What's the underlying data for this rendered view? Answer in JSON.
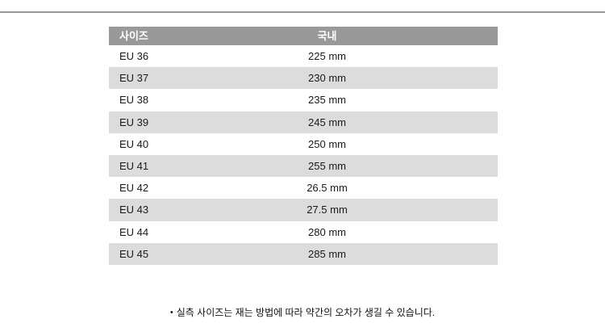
{
  "page": {
    "background": "#ffffff",
    "rule_color": "#999999"
  },
  "size_table": {
    "header_bg": "#999999",
    "header_text_color": "#ffffff",
    "row_bg": "#ffffff",
    "zebra_bg": "#dcdcdc",
    "cell_text_color": "#1a1a1a",
    "headers": [
      "사이즈",
      "국내"
    ],
    "rows": [
      [
        "EU 36",
        "225 mm"
      ],
      [
        "EU 37",
        "230 mm"
      ],
      [
        "EU 38",
        "235 mm"
      ],
      [
        "EU 39",
        "245 mm"
      ],
      [
        "EU 40",
        "250 mm"
      ],
      [
        "EU 41",
        "255 mm"
      ],
      [
        "EU 42",
        "26.5 mm"
      ],
      [
        "EU 43",
        "27.5 mm"
      ],
      [
        "EU 44",
        "280 mm"
      ],
      [
        "EU 45",
        "285 mm"
      ]
    ]
  },
  "footnote": {
    "bullet": "•",
    "text": "실측 사이즈는 재는 방법에 따라 약간의 오차가 생길 수 있습니다."
  }
}
